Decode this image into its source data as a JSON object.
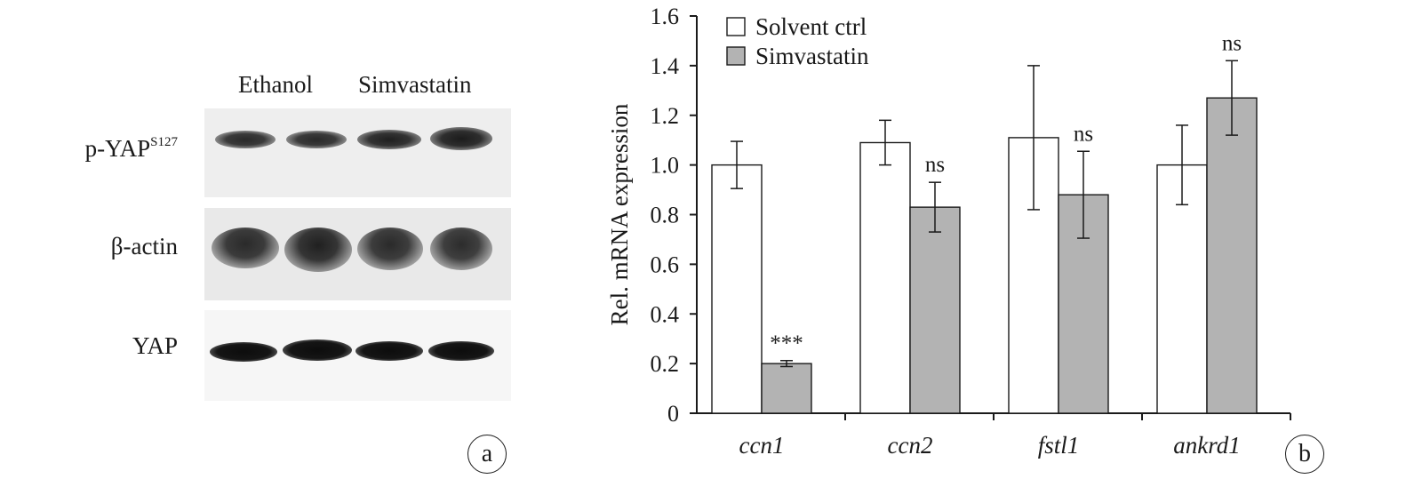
{
  "panel_a": {
    "circle_label": "a",
    "lane_headers": [
      "Ethanol",
      "Simvastatin"
    ],
    "rows": [
      {
        "label": "p-YAP",
        "superscript": "S127"
      },
      {
        "label": "β-actin",
        "superscript": ""
      },
      {
        "label": "YAP",
        "superscript": ""
      }
    ]
  },
  "panel_b": {
    "circle_label": "b"
  },
  "chart_data": {
    "type": "bar",
    "categories": [
      "ccn1",
      "ccn2",
      "fstl1",
      "ankrd1"
    ],
    "series": [
      {
        "name": "Solvent ctrl",
        "color": "#ffffff",
        "values": [
          1.0,
          1.09,
          1.11,
          1.0
        ],
        "errors": [
          0.095,
          0.09,
          0.29,
          0.16
        ],
        "annotations": [
          "",
          "",
          "",
          ""
        ]
      },
      {
        "name": "Simvastatin",
        "color": "#b3b3b3",
        "values": [
          0.2,
          0.83,
          0.88,
          1.27
        ],
        "errors": [
          0.012,
          0.1,
          0.175,
          0.15
        ],
        "annotations": [
          "***",
          "ns",
          "ns",
          "ns"
        ]
      }
    ],
    "title": "",
    "xlabel": "",
    "ylabel": "Rel. mRNA expression",
    "ylim": [
      0,
      1.6
    ],
    "yticks": [
      0,
      0.2,
      0.4,
      0.6,
      0.8,
      1.0,
      1.2,
      1.4,
      1.6
    ],
    "ytick_labels": [
      "0",
      "0.2",
      "0.4",
      "0.6",
      "0.8",
      "1.0",
      "1.2",
      "1.4",
      "1.6"
    ],
    "category_style": "italic",
    "grid": false,
    "legend": "top-left"
  }
}
